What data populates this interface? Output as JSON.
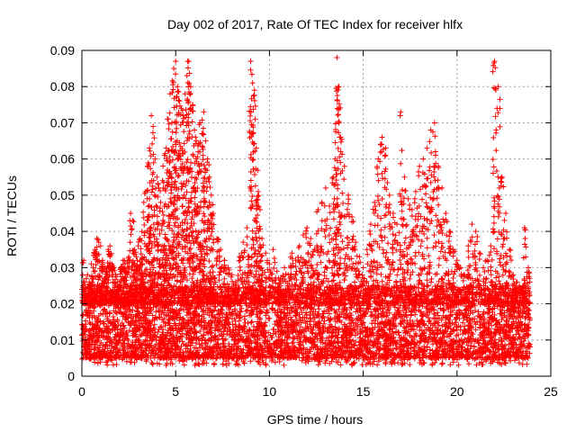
{
  "chart_data": {
    "type": "scatter",
    "title": "Day 002 of 2017, Rate Of TEC Index for receiver hlfx",
    "xlabel": "GPS time / hours",
    "ylabel": "ROTI / TECUs",
    "xlim": [
      0,
      25
    ],
    "ylim": [
      0,
      0.09
    ],
    "x_ticks": [
      0,
      5,
      10,
      15,
      20,
      25
    ],
    "y_ticks": [
      0,
      0.01,
      0.02,
      0.03,
      0.04,
      0.05,
      0.06,
      0.07,
      0.08,
      0.09
    ],
    "x_tick_labels": [
      "0",
      "5",
      "10",
      "15",
      "20",
      "25"
    ],
    "y_tick_labels": [
      "0",
      "0.01",
      "0.02",
      "0.03",
      "0.04",
      "0.05",
      "0.06",
      "0.07",
      "0.08",
      "0.09"
    ],
    "grid": true,
    "marker": "plus",
    "color": "#ff0000",
    "series": [
      {
        "x": [
          0.0,
          0.1,
          0.2,
          0.3,
          0.4,
          0.5,
          0.6,
          0.7,
          0.8,
          0.9,
          1.0,
          1.1,
          1.2,
          1.3,
          1.4,
          1.5,
          1.6,
          1.7,
          1.8,
          1.9,
          2.0,
          2.1,
          2.2,
          2.3,
          2.4,
          2.5,
          2.6,
          2.7,
          2.8,
          2.9,
          3.0,
          3.1,
          3.2,
          3.3,
          3.4,
          3.5,
          3.6,
          3.7,
          3.8,
          3.9,
          4.0,
          4.1,
          4.2,
          4.3,
          4.4,
          4.5,
          4.6,
          4.7,
          4.8,
          4.9,
          5.0,
          5.1,
          5.2,
          5.3,
          5.4,
          5.5,
          5.6,
          5.7,
          5.8,
          5.9,
          6.0,
          6.1,
          6.2,
          6.3,
          6.4,
          6.5,
          6.6,
          6.7,
          6.8,
          6.9,
          7.0,
          7.2,
          7.4,
          7.6,
          7.8,
          8.0,
          8.2,
          8.4,
          8.6,
          8.8,
          9.0,
          9.1,
          9.2,
          9.3,
          9.4,
          9.5,
          9.6,
          9.8,
          10.0,
          10.2,
          10.4,
          10.6,
          10.8,
          11.0,
          11.2,
          11.4,
          11.6,
          11.8,
          12.0,
          12.2,
          12.4,
          12.6,
          12.8,
          13.0,
          13.2,
          13.4,
          13.5,
          13.6,
          13.7,
          13.8,
          14.0,
          14.2,
          14.4,
          14.6,
          14.8,
          15.0,
          15.2,
          15.4,
          15.6,
          15.8,
          16.0,
          16.2,
          16.4,
          16.6,
          16.8,
          17.0,
          17.2,
          17.4,
          17.6,
          17.8,
          18.0,
          18.2,
          18.4,
          18.6,
          18.8,
          19.0,
          19.2,
          19.4,
          19.6,
          19.8,
          20.0,
          20.2,
          20.4,
          20.6,
          20.8,
          21.0,
          21.2,
          21.4,
          21.6,
          21.8,
          22.0,
          22.2,
          22.4,
          22.6,
          22.8,
          23.0,
          23.2,
          23.4,
          23.6,
          23.8
        ],
        "y": [
          0.024,
          0.032,
          0.022,
          0.028,
          0.026,
          0.031,
          0.03,
          0.035,
          0.038,
          0.037,
          0.036,
          0.032,
          0.03,
          0.029,
          0.035,
          0.036,
          0.031,
          0.03,
          0.028,
          0.026,
          0.025,
          0.03,
          0.032,
          0.03,
          0.029,
          0.033,
          0.045,
          0.043,
          0.035,
          0.033,
          0.036,
          0.038,
          0.04,
          0.048,
          0.051,
          0.058,
          0.063,
          0.072,
          0.069,
          0.06,
          0.055,
          0.052,
          0.048,
          0.054,
          0.061,
          0.063,
          0.071,
          0.078,
          0.07,
          0.085,
          0.087,
          0.08,
          0.076,
          0.074,
          0.072,
          0.078,
          0.083,
          0.087,
          0.08,
          0.075,
          0.068,
          0.065,
          0.062,
          0.07,
          0.067,
          0.073,
          0.065,
          0.06,
          0.055,
          0.05,
          0.045,
          0.038,
          0.035,
          0.032,
          0.03,
          0.028,
          0.026,
          0.033,
          0.037,
          0.041,
          0.087,
          0.081,
          0.079,
          0.063,
          0.051,
          0.046,
          0.038,
          0.034,
          0.031,
          0.035,
          0.029,
          0.027,
          0.03,
          0.028,
          0.034,
          0.032,
          0.036,
          0.039,
          0.041,
          0.038,
          0.035,
          0.046,
          0.048,
          0.052,
          0.047,
          0.055,
          0.06,
          0.088,
          0.08,
          0.066,
          0.058,
          0.05,
          0.044,
          0.037,
          0.033,
          0.03,
          0.035,
          0.042,
          0.048,
          0.06,
          0.066,
          0.063,
          0.05,
          0.045,
          0.042,
          0.073,
          0.055,
          0.049,
          0.046,
          0.051,
          0.058,
          0.06,
          0.063,
          0.068,
          0.07,
          0.058,
          0.052,
          0.045,
          0.04,
          0.035,
          0.032,
          0.03,
          0.028,
          0.036,
          0.042,
          0.04,
          0.034,
          0.03,
          0.032,
          0.036,
          0.087,
          0.08,
          0.055,
          0.045,
          0.035,
          0.028,
          0.026,
          0.024,
          0.041,
          0.03
        ]
      }
    ],
    "band": {
      "x_start": 0.0,
      "x_end": 23.9,
      "y_low": 0.005,
      "y_high": 0.025,
      "y_min_outliers": [
        0.003,
        0.004
      ]
    }
  }
}
